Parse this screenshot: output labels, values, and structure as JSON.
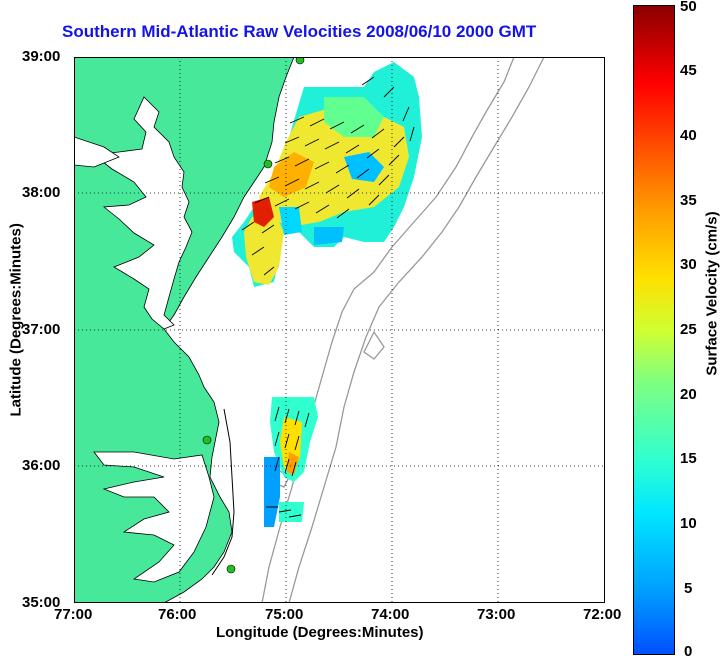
{
  "title": "Southern Mid-Atlantic Raw Velocities 2008/06/10 2000 GMT",
  "xlabel": "Longitude (Degrees:Minutes)",
  "ylabel": "Latitude (Degrees:Minutes)",
  "x_ticks": [
    "77:00",
    "76:00",
    "75:00",
    "74:00",
    "73:00",
    "72:00"
  ],
  "y_ticks": [
    "39:00",
    "38:00",
    "37:00",
    "36:00",
    "35:00"
  ],
  "colorbar": {
    "label": "Surface Velocity (cm/s)",
    "ticks": [
      "50",
      "45",
      "40",
      "35",
      "30",
      "25",
      "20",
      "15",
      "10",
      "5",
      "0"
    ]
  },
  "colors": {
    "land": "#48e89a",
    "coast": "#000000",
    "grid": "#000000",
    "title": "#1414e6",
    "bathymetry": "#999999"
  }
}
